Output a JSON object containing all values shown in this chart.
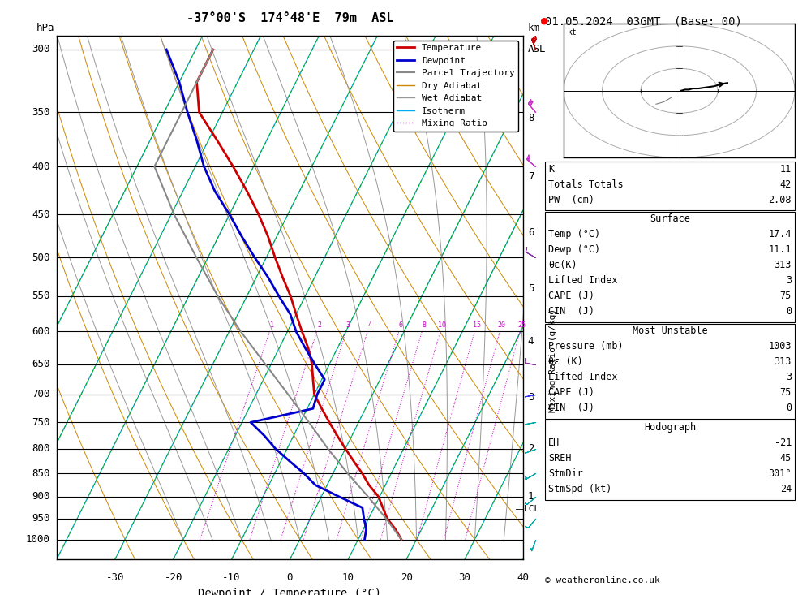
{
  "title_left": "-37°00'S  174°48'E  79m  ASL",
  "title_right": "01.05.2024  03GMT  (Base: 00)",
  "xlabel": "Dewpoint / Temperature (°C)",
  "pressure_levels": [
    300,
    350,
    400,
    450,
    500,
    550,
    600,
    650,
    700,
    750,
    800,
    850,
    900,
    950,
    1000
  ],
  "mixing_ratio_vals": [
    1,
    2,
    3,
    4,
    6,
    8,
    10,
    15,
    20,
    25
  ],
  "km_heights": {
    "1": 900,
    "2": 800,
    "3": 705,
    "4": 615,
    "5": 540,
    "6": 470,
    "7": 410,
    "8": 355
  },
  "temp_color": "#cc0000",
  "dewp_color": "#0000cc",
  "parcel_color": "#888888",
  "dry_adiabat_color": "#cc8800",
  "wet_adiabat_color": "#999999",
  "isotherm_color": "#00aaee",
  "mixing_ratio_color": "#cc00cc",
  "green_dashes_color": "#00aa00",
  "stats": {
    "K": 11,
    "Totals_Totals": 42,
    "PW_cm": "2.08",
    "Surface_Temp": "17.4",
    "Surface_Dewp": "11.1",
    "theta_e_K": 313,
    "Lifted_Index": 3,
    "CAPE_J": 75,
    "CIN_J": 0,
    "MU_Pressure_mb": 1003,
    "MU_theta_e_K": 313,
    "MU_Lifted_Index": 3,
    "MU_CAPE_J": 75,
    "MU_CIN_J": 0,
    "EH": -21,
    "SREH": 45,
    "StmDir": 301,
    "StmSpd_kt": 24
  },
  "temperature_profile": {
    "pressure": [
      1000,
      975,
      950,
      925,
      900,
      875,
      850,
      825,
      800,
      775,
      750,
      725,
      700,
      675,
      650,
      625,
      600,
      575,
      550,
      525,
      500,
      475,
      450,
      425,
      400,
      375,
      350,
      325,
      300
    ],
    "temp": [
      17.4,
      15.5,
      13.2,
      11.5,
      9.8,
      7.2,
      5.0,
      2.5,
      0.0,
      -2.5,
      -5.0,
      -7.5,
      -10.0,
      -11.5,
      -13.0,
      -15.0,
      -17.5,
      -20.0,
      -22.5,
      -25.5,
      -28.5,
      -31.5,
      -35.0,
      -39.0,
      -43.5,
      -48.5,
      -54.0,
      -57.0,
      -57.0
    ]
  },
  "dewpoint_profile": {
    "pressure": [
      1000,
      975,
      950,
      925,
      900,
      875,
      850,
      825,
      800,
      775,
      750,
      725,
      700,
      675,
      650,
      625,
      600,
      575,
      550,
      525,
      500,
      475,
      450,
      425,
      400,
      375,
      350,
      325,
      300
    ],
    "dewp": [
      11.1,
      10.5,
      9.2,
      8.0,
      3.0,
      -2.0,
      -5.0,
      -8.5,
      -12.0,
      -15.0,
      -18.5,
      -9.0,
      -9.5,
      -9.5,
      -12.5,
      -15.5,
      -18.5,
      -21.0,
      -24.5,
      -28.0,
      -32.0,
      -36.0,
      -40.0,
      -44.5,
      -48.5,
      -52.0,
      -56.0,
      -60.0,
      -65.0
    ]
  },
  "parcel_profile": {
    "pressure": [
      1000,
      950,
      900,
      850,
      800,
      750,
      700,
      650,
      600,
      550,
      500,
      450,
      400,
      350,
      300
    ],
    "temp": [
      17.4,
      13.0,
      8.0,
      2.5,
      -3.0,
      -8.5,
      -14.5,
      -21.0,
      -28.0,
      -35.0,
      -42.0,
      -49.5,
      -57.0,
      -57.0,
      -57.0
    ]
  },
  "wind_barbs": {
    "pressure": [
      1000,
      950,
      900,
      850,
      800,
      750,
      700,
      650,
      500,
      400,
      350,
      300
    ],
    "speed_kt": [
      5,
      8,
      10,
      15,
      8,
      10,
      8,
      20,
      12,
      25,
      30,
      35
    ],
    "direction": [
      200,
      220,
      230,
      240,
      250,
      260,
      260,
      280,
      300,
      310,
      320,
      340
    ],
    "colors": [
      "#00aaaa",
      "#00aaaa",
      "#00aaaa",
      "#00aaaa",
      "#00aaaa",
      "#00aaaa",
      "#3333ff",
      "#8833aa",
      "#8833aa",
      "#cc33cc",
      "#cc33cc",
      "#cc0000"
    ]
  },
  "lcl_pressure": 927,
  "hodo_trace_u": [
    0.5,
    1.5,
    2.5,
    3.5,
    5.0,
    7.0,
    9.0,
    11.0,
    12.5
  ],
  "hodo_trace_v": [
    0.0,
    0.5,
    0.5,
    1.0,
    1.0,
    1.5,
    2.0,
    3.0,
    3.5
  ],
  "hodo_gray_u": [
    -6,
    -4,
    -3,
    -2
  ],
  "hodo_gray_v": [
    -6,
    -5,
    -4,
    -3
  ]
}
